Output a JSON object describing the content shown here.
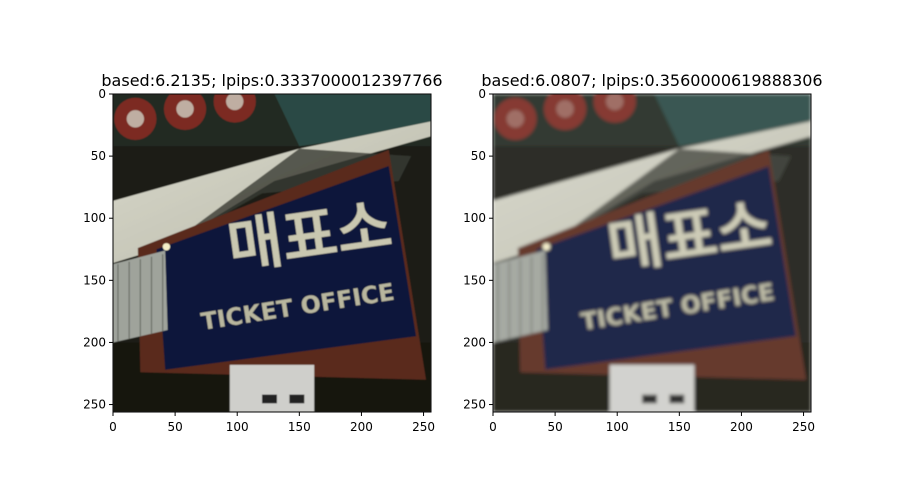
{
  "chart_data": [
    {
      "type": "image",
      "title": "based:6.2135; lpips:0.3337000012397766",
      "xlim": [
        0,
        256
      ],
      "ylim": [
        256,
        0
      ],
      "xticks": [
        0,
        50,
        100,
        150,
        200,
        250
      ],
      "yticks": [
        0,
        50,
        100,
        150,
        200,
        250
      ],
      "grid": false,
      "sign_text_korean": "매표소",
      "sign_text_english": "TICKET OFFICE"
    },
    {
      "type": "image",
      "title": "based:6.0807; lpips:0.3560000619888306",
      "xlim": [
        0,
        256
      ],
      "ylim": [
        256,
        0
      ],
      "xticks": [
        0,
        50,
        100,
        150,
        200,
        250
      ],
      "yticks": [
        0,
        50,
        100,
        150,
        200,
        250
      ],
      "grid": false,
      "sign_text_korean": "매표소",
      "sign_text_english": "TICKET OFFICE"
    }
  ]
}
